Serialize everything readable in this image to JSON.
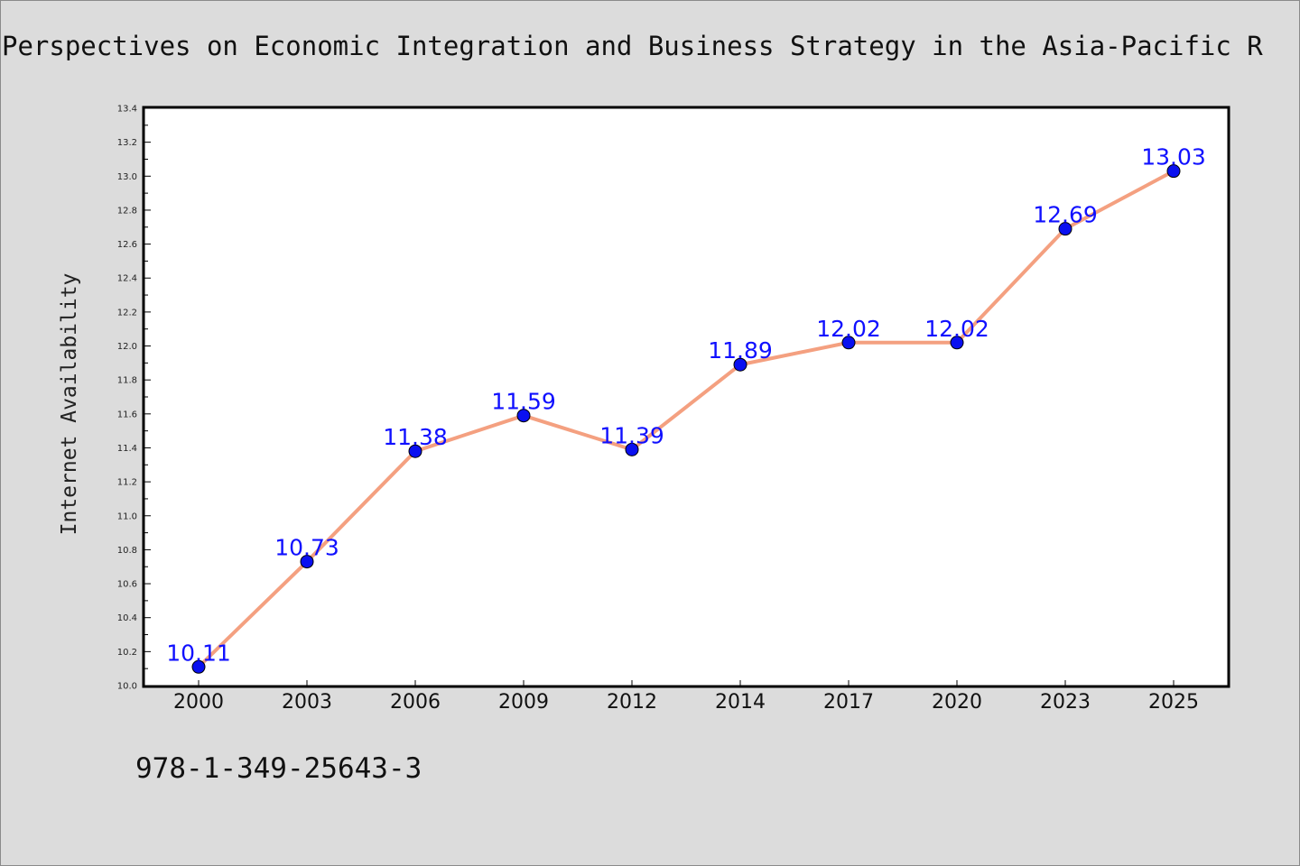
{
  "chart_data": {
    "type": "line",
    "title": "Perspectives on Economic Integration and Business Strategy in the Asia-Pacific R",
    "ylabel": "Internet Availability",
    "xlabel": "",
    "categories": [
      "2000",
      "2003",
      "2006",
      "2009",
      "2012",
      "2014",
      "2017",
      "2020",
      "2023",
      "2025"
    ],
    "values": [
      10.11,
      10.73,
      11.38,
      11.59,
      11.39,
      11.89,
      12.02,
      12.02,
      12.69,
      13.03
    ],
    "data_labels": [
      "10.11",
      "10.73",
      "11.38",
      "11.59",
      "11.39",
      "11.89",
      "12.02",
      "12.02",
      "12.69",
      "13.03"
    ],
    "ylim": [
      10.0,
      13.4
    ],
    "yticks": [
      "10.0",
      "10.2",
      "10.4",
      "10.6",
      "10.8",
      "11.0",
      "11.2",
      "11.4",
      "11.6",
      "11.8",
      "12.0",
      "12.2",
      "12.4",
      "12.6",
      "12.8",
      "13.0",
      "13.2",
      "13.4"
    ],
    "grid": false,
    "legend": "none",
    "line_color": "#f4a080",
    "marker_color": "#0a10f0",
    "label_color": "#1010ff"
  },
  "footer": {
    "isbn": "978-1-349-25643-3"
  }
}
